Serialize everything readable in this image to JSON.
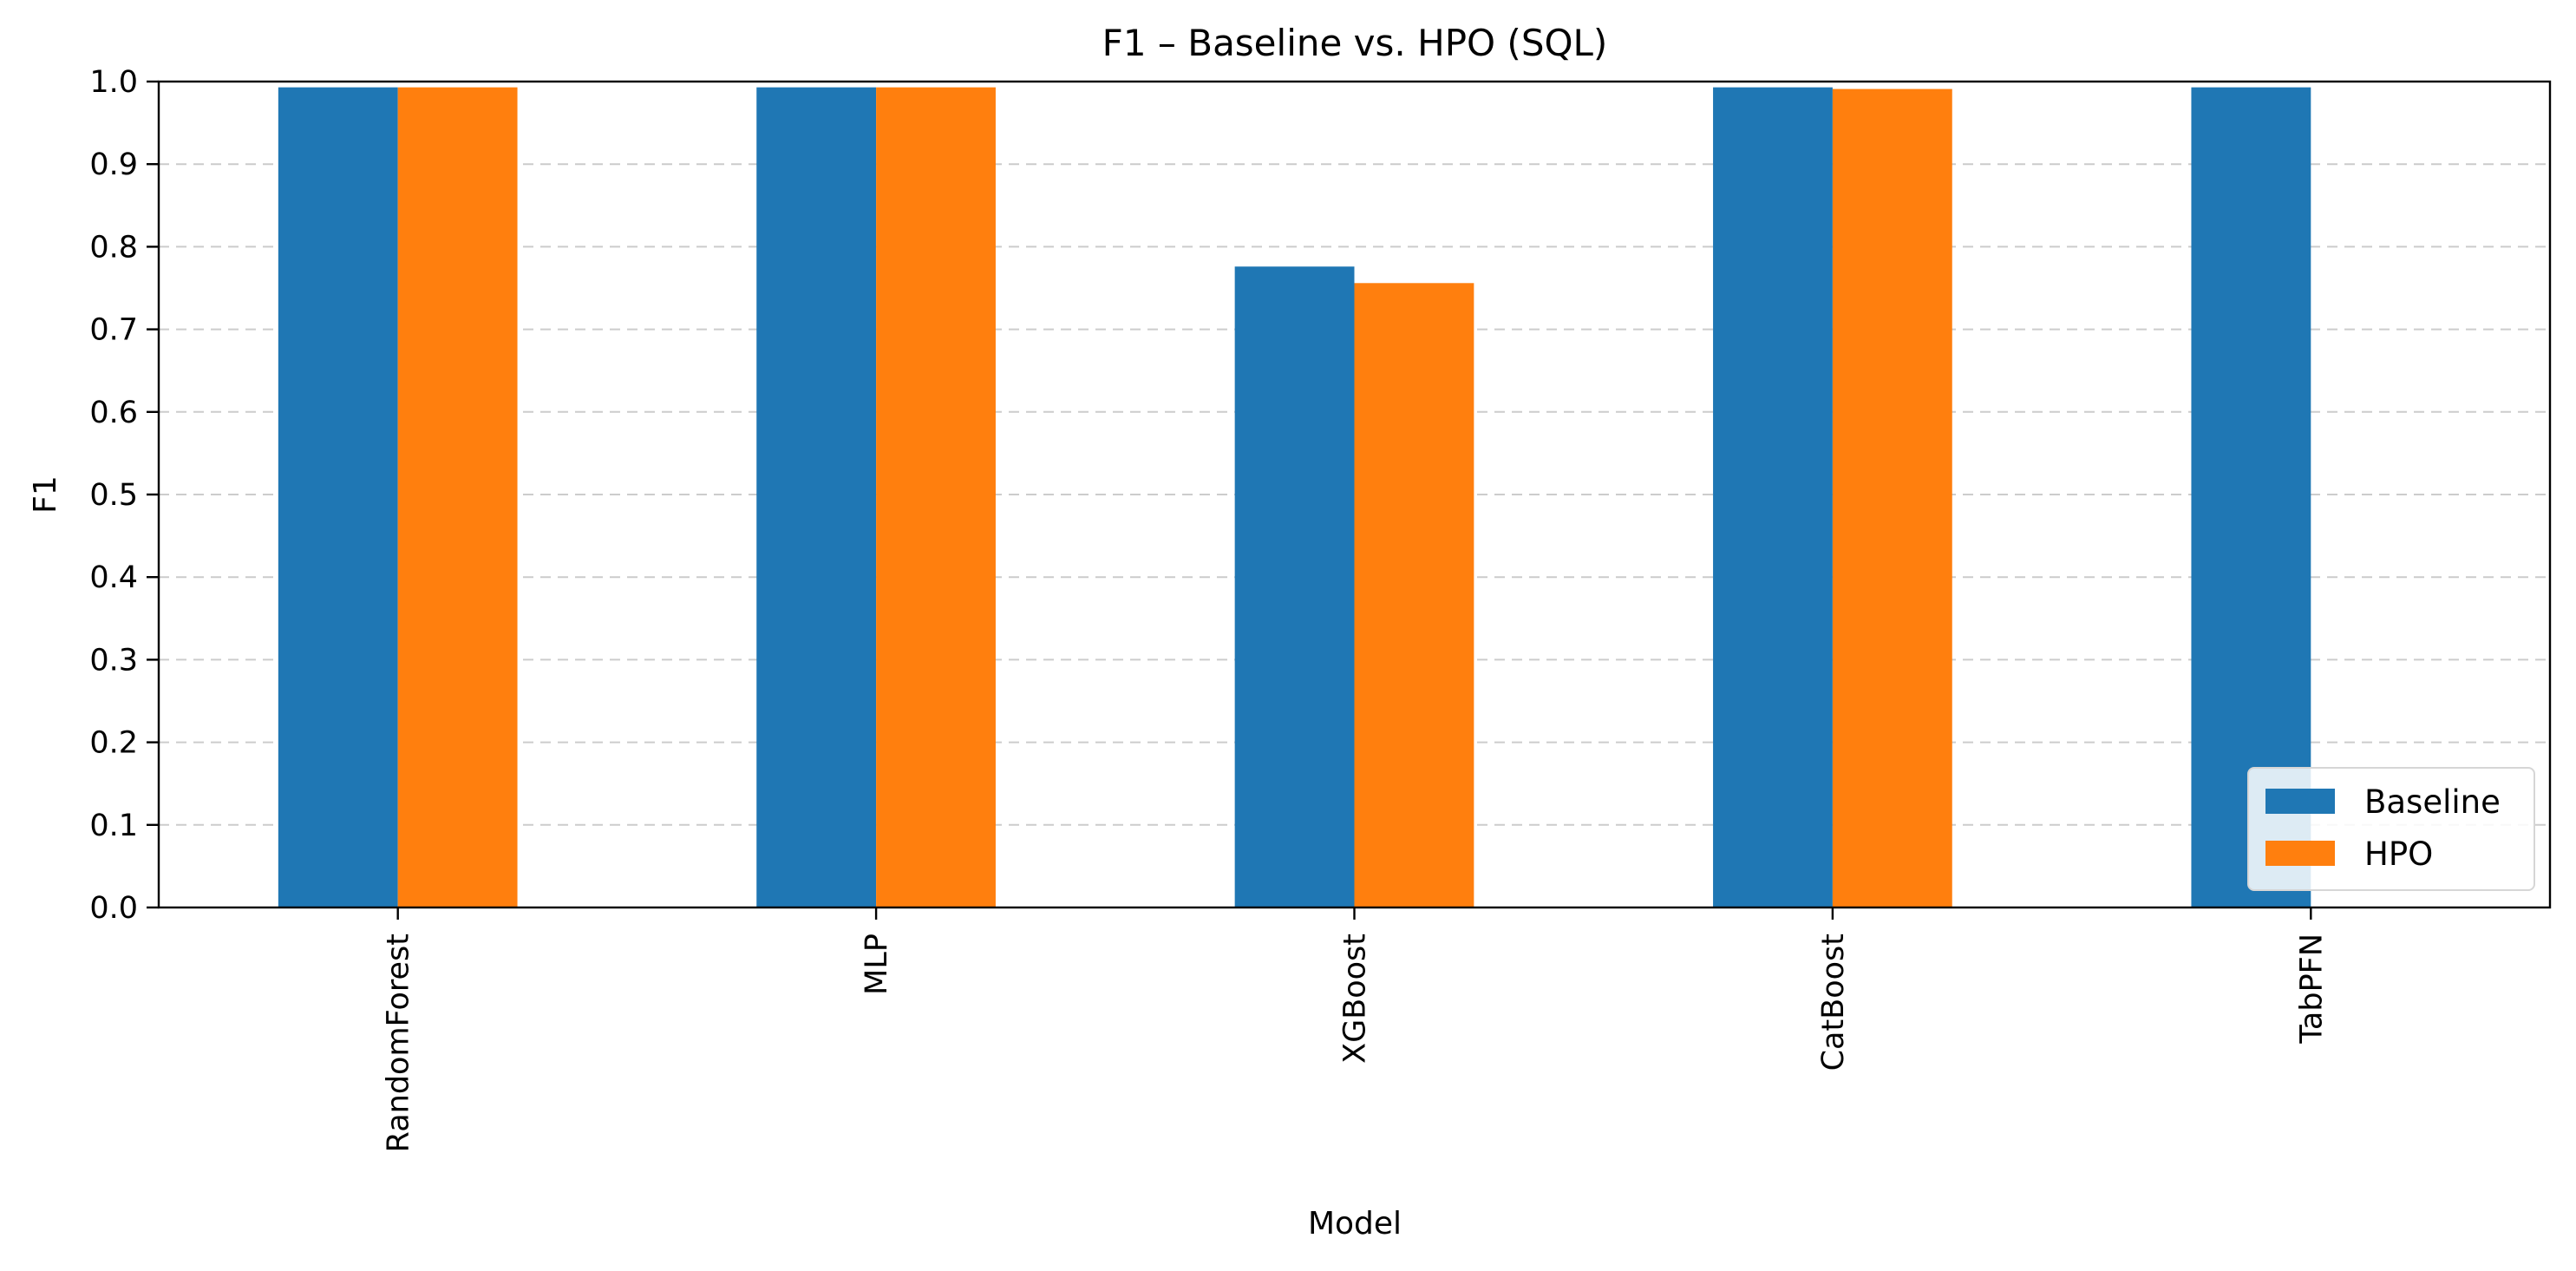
{
  "chart_data": {
    "type": "bar",
    "title": "F1 – Baseline vs. HPO (SQL)",
    "xlabel": "Model",
    "ylabel": "F1",
    "categories": [
      "RandomForest",
      "MLP",
      "XGBoost",
      "CatBoost",
      "TabPFN"
    ],
    "series": [
      {
        "name": "Baseline",
        "color": "#1f77b4",
        "values": [
          0.993,
          0.993,
          0.776,
          0.993,
          0.993
        ]
      },
      {
        "name": "HPO",
        "color": "#ff7f0e",
        "values": [
          0.993,
          0.993,
          0.756,
          0.991,
          null
        ]
      }
    ],
    "ylim": [
      0,
      1
    ],
    "yticks": [
      "0.0",
      "0.1",
      "0.2",
      "0.3",
      "0.4",
      "0.5",
      "0.6",
      "0.7",
      "0.8",
      "0.9",
      "1.0"
    ],
    "grid": "y-dashed",
    "legend": "lower-right"
  }
}
